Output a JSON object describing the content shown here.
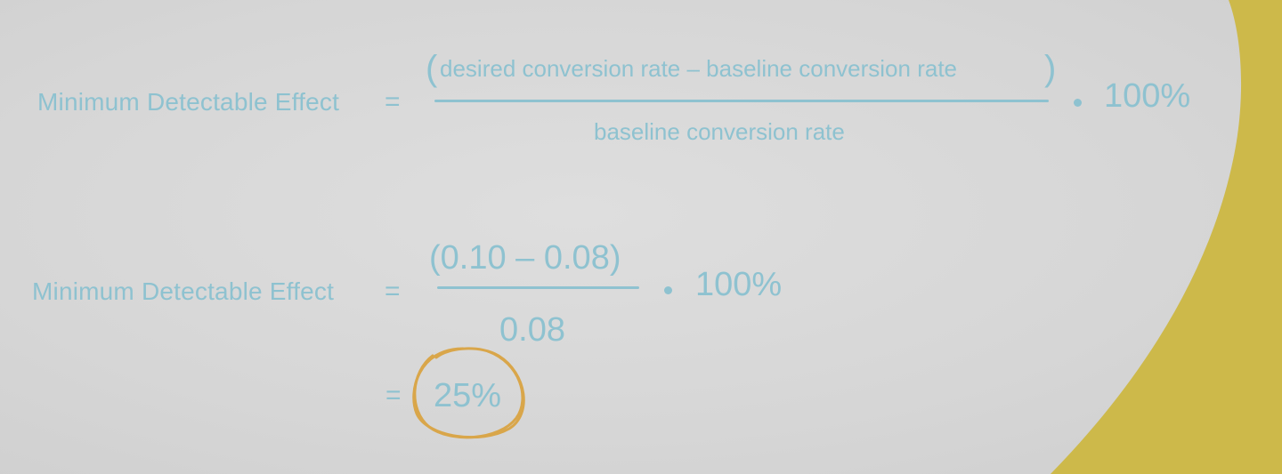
{
  "colors": {
    "background": "#d8d8d8",
    "formula": "#8ec2d0",
    "accent_yellow": "#cdb94a",
    "circle_orange": "#d9a64a"
  },
  "formula_general": {
    "label": "Minimum Detectable Effect",
    "equals": "=",
    "numerator": "desired conversion rate – baseline conversion rate",
    "paren_open": "(",
    "paren_close": ")",
    "denominator": "baseline conversion rate",
    "multiplier": "100%"
  },
  "formula_example": {
    "label": "Minimum Detectable Effect",
    "equals": "=",
    "numerator": "(0.10 – 0.08)",
    "denominator": "0.08",
    "multiplier": "100%"
  },
  "result": {
    "equals": "=",
    "value": "25%"
  },
  "decorations": {
    "right_band": "yellow-curved-band",
    "highlight": "hand-drawn-circle"
  }
}
